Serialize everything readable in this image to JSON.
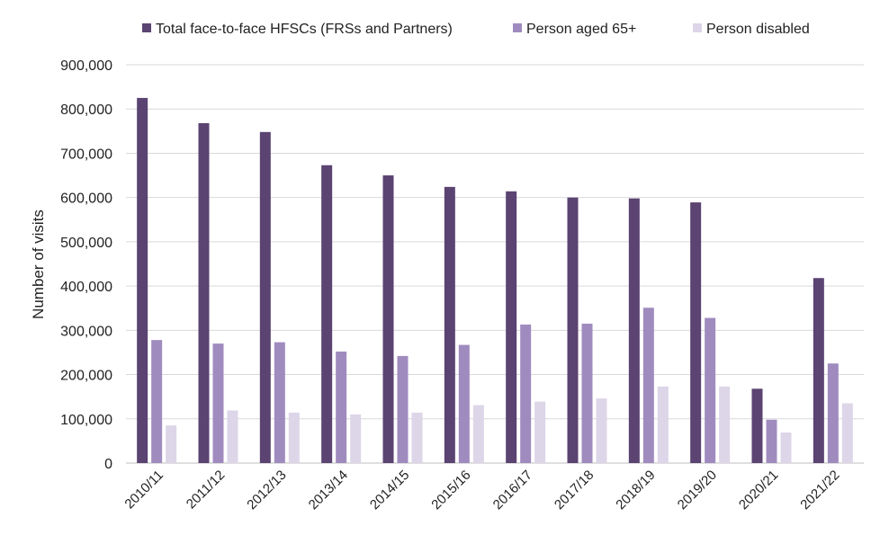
{
  "chart_data": {
    "type": "bar",
    "title": "",
    "xlabel": "",
    "ylabel": "Number of visits",
    "ylim": [
      0,
      900000
    ],
    "yticks": [
      0,
      100000,
      200000,
      300000,
      400000,
      500000,
      600000,
      700000,
      800000,
      900000
    ],
    "ytick_labels": [
      "0",
      "100,000",
      "200,000",
      "300,000",
      "400,000",
      "500,000",
      "600,000",
      "700,000",
      "800,000",
      "900,000"
    ],
    "grid": true,
    "legend_position": "top",
    "categories": [
      "2010/11",
      "2011/12",
      "2012/13",
      "2013/14",
      "2014/15",
      "2015/16",
      "2016/17",
      "2017/18",
      "2018/19",
      "2019/20",
      "2020/21",
      "2021/22"
    ],
    "series": [
      {
        "name": "Total face-to-face HFSCs (FRSs and Partners)",
        "color": "#5b4372",
        "values": [
          825000,
          768000,
          748000,
          673000,
          650000,
          624000,
          614000,
          600000,
          598000,
          589000,
          168000,
          418000
        ]
      },
      {
        "name": "Person aged 65+",
        "color": "#a08bbf",
        "values": [
          278000,
          270000,
          273000,
          252000,
          242000,
          267000,
          313000,
          315000,
          351000,
          328000,
          98000,
          225000
        ]
      },
      {
        "name": "Person disabled",
        "color": "#ddd5e8",
        "values": [
          85000,
          119000,
          114000,
          110000,
          114000,
          131000,
          139000,
          146000,
          173000,
          173000,
          69000,
          135000
        ]
      }
    ]
  }
}
